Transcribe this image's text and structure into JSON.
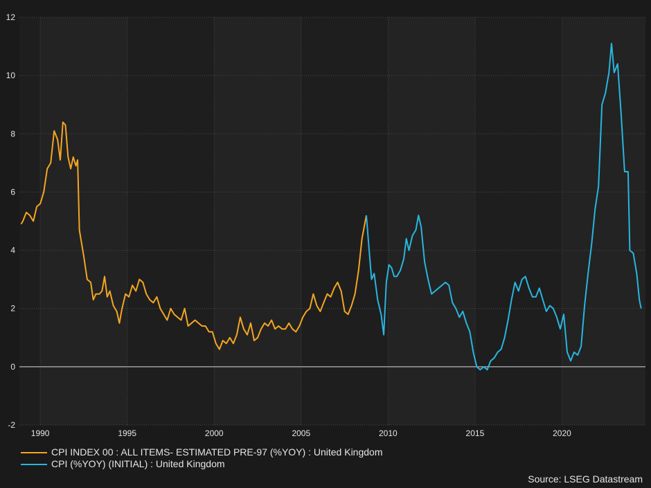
{
  "chart_data": {
    "type": "line",
    "title": "",
    "xlabel": "",
    "ylabel": "",
    "xlim": [
      1988.8,
      2024.8
    ],
    "ylim": [
      -2,
      12
    ],
    "x_ticks": [
      "1990",
      "1995",
      "2000",
      "2005",
      "2010",
      "2015",
      "2020"
    ],
    "y_ticks": [
      "-2",
      "0",
      "2",
      "4",
      "6",
      "8",
      "10",
      "12"
    ],
    "grid": true,
    "legend_position": "bottom-left",
    "zero_line": true,
    "series": [
      {
        "name": "CPI INDEX 00 : ALL ITEMS- ESTIMATED PRE-97 (%YOY) : United Kingdom",
        "color": "#f5a623",
        "points": [
          [
            1988.9,
            4.9
          ],
          [
            1989.0,
            5.0
          ],
          [
            1989.2,
            5.3
          ],
          [
            1989.4,
            5.2
          ],
          [
            1989.6,
            5.0
          ],
          [
            1989.8,
            5.5
          ],
          [
            1990.0,
            5.6
          ],
          [
            1990.2,
            6.0
          ],
          [
            1990.4,
            6.8
          ],
          [
            1990.6,
            7.0
          ],
          [
            1990.8,
            8.1
          ],
          [
            1991.0,
            7.8
          ],
          [
            1991.15,
            7.1
          ],
          [
            1991.3,
            8.4
          ],
          [
            1991.45,
            8.3
          ],
          [
            1991.6,
            7.2
          ],
          [
            1991.75,
            6.8
          ],
          [
            1991.9,
            7.2
          ],
          [
            1992.05,
            6.9
          ],
          [
            1992.15,
            7.1
          ],
          [
            1992.25,
            4.7
          ],
          [
            1992.5,
            3.8
          ],
          [
            1992.7,
            3.0
          ],
          [
            1992.9,
            2.9
          ],
          [
            1993.05,
            2.3
          ],
          [
            1993.2,
            2.5
          ],
          [
            1993.4,
            2.5
          ],
          [
            1993.55,
            2.6
          ],
          [
            1993.7,
            3.1
          ],
          [
            1993.85,
            2.4
          ],
          [
            1994.0,
            2.6
          ],
          [
            1994.2,
            2.1
          ],
          [
            1994.4,
            1.9
          ],
          [
            1994.55,
            1.5
          ],
          [
            1994.7,
            2.0
          ],
          [
            1994.9,
            2.5
          ],
          [
            1995.1,
            2.4
          ],
          [
            1995.3,
            2.8
          ],
          [
            1995.5,
            2.6
          ],
          [
            1995.7,
            3.0
          ],
          [
            1995.9,
            2.9
          ],
          [
            1996.1,
            2.5
          ],
          [
            1996.3,
            2.3
          ],
          [
            1996.5,
            2.2
          ],
          [
            1996.7,
            2.4
          ],
          [
            1996.9,
            2.0
          ],
          [
            1997.1,
            1.8
          ],
          [
            1997.3,
            1.6
          ],
          [
            1997.5,
            2.0
          ],
          [
            1997.7,
            1.8
          ],
          [
            1997.9,
            1.7
          ],
          [
            1998.1,
            1.6
          ],
          [
            1998.3,
            2.0
          ],
          [
            1998.5,
            1.4
          ],
          [
            1998.7,
            1.5
          ],
          [
            1998.9,
            1.6
          ],
          [
            1999.1,
            1.5
          ],
          [
            1999.3,
            1.4
          ],
          [
            1999.5,
            1.4
          ],
          [
            1999.7,
            1.2
          ],
          [
            1999.9,
            1.2
          ],
          [
            2000.1,
            0.8
          ],
          [
            2000.3,
            0.6
          ],
          [
            2000.5,
            0.9
          ],
          [
            2000.7,
            0.8
          ],
          [
            2000.9,
            1.0
          ],
          [
            2001.1,
            0.8
          ],
          [
            2001.3,
            1.1
          ],
          [
            2001.5,
            1.7
          ],
          [
            2001.7,
            1.3
          ],
          [
            2001.9,
            1.1
          ],
          [
            2002.1,
            1.5
          ],
          [
            2002.3,
            0.9
          ],
          [
            2002.5,
            1.0
          ],
          [
            2002.7,
            1.3
          ],
          [
            2002.9,
            1.5
          ],
          [
            2003.1,
            1.4
          ],
          [
            2003.3,
            1.6
          ],
          [
            2003.5,
            1.3
          ],
          [
            2003.7,
            1.4
          ],
          [
            2003.9,
            1.3
          ],
          [
            2004.1,
            1.3
          ],
          [
            2004.3,
            1.5
          ],
          [
            2004.5,
            1.3
          ],
          [
            2004.7,
            1.2
          ],
          [
            2004.9,
            1.4
          ],
          [
            2005.1,
            1.7
          ],
          [
            2005.3,
            1.9
          ],
          [
            2005.5,
            2.0
          ],
          [
            2005.7,
            2.5
          ],
          [
            2005.9,
            2.1
          ],
          [
            2006.1,
            1.9
          ],
          [
            2006.3,
            2.2
          ],
          [
            2006.5,
            2.5
          ],
          [
            2006.7,
            2.4
          ],
          [
            2006.9,
            2.7
          ],
          [
            2007.1,
            2.9
          ],
          [
            2007.3,
            2.6
          ],
          [
            2007.5,
            1.9
          ],
          [
            2007.7,
            1.8
          ],
          [
            2007.9,
            2.1
          ],
          [
            2008.1,
            2.5
          ],
          [
            2008.3,
            3.3
          ],
          [
            2008.5,
            4.4
          ],
          [
            2008.75,
            5.2
          ]
        ]
      },
      {
        "name": "CPI (%YOY) (INITIAL) : United Kingdom",
        "color": "#29b6e0",
        "points": [
          [
            2008.75,
            5.2
          ],
          [
            2008.9,
            4.1
          ],
          [
            2009.05,
            3.0
          ],
          [
            2009.2,
            3.2
          ],
          [
            2009.4,
            2.3
          ],
          [
            2009.6,
            1.8
          ],
          [
            2009.75,
            1.1
          ],
          [
            2009.9,
            2.9
          ],
          [
            2010.05,
            3.5
          ],
          [
            2010.2,
            3.4
          ],
          [
            2010.35,
            3.1
          ],
          [
            2010.5,
            3.1
          ],
          [
            2010.7,
            3.3
          ],
          [
            2010.9,
            3.7
          ],
          [
            2011.05,
            4.4
          ],
          [
            2011.2,
            4.0
          ],
          [
            2011.4,
            4.5
          ],
          [
            2011.6,
            4.7
          ],
          [
            2011.75,
            5.2
          ],
          [
            2011.9,
            4.8
          ],
          [
            2012.1,
            3.6
          ],
          [
            2012.3,
            3.0
          ],
          [
            2012.5,
            2.5
          ],
          [
            2012.7,
            2.6
          ],
          [
            2012.9,
            2.7
          ],
          [
            2013.1,
            2.8
          ],
          [
            2013.3,
            2.9
          ],
          [
            2013.5,
            2.8
          ],
          [
            2013.7,
            2.2
          ],
          [
            2013.9,
            2.0
          ],
          [
            2014.1,
            1.7
          ],
          [
            2014.3,
            1.9
          ],
          [
            2014.5,
            1.5
          ],
          [
            2014.7,
            1.2
          ],
          [
            2014.9,
            0.5
          ],
          [
            2015.1,
            0.0
          ],
          [
            2015.3,
            -0.1
          ],
          [
            2015.5,
            0.0
          ],
          [
            2015.7,
            -0.1
          ],
          [
            2015.9,
            0.2
          ],
          [
            2016.1,
            0.3
          ],
          [
            2016.3,
            0.5
          ],
          [
            2016.5,
            0.6
          ],
          [
            2016.7,
            1.0
          ],
          [
            2016.9,
            1.6
          ],
          [
            2017.1,
            2.3
          ],
          [
            2017.3,
            2.9
          ],
          [
            2017.5,
            2.6
          ],
          [
            2017.7,
            3.0
          ],
          [
            2017.9,
            3.1
          ],
          [
            2018.1,
            2.7
          ],
          [
            2018.3,
            2.4
          ],
          [
            2018.5,
            2.4
          ],
          [
            2018.7,
            2.7
          ],
          [
            2018.9,
            2.3
          ],
          [
            2019.1,
            1.9
          ],
          [
            2019.3,
            2.1
          ],
          [
            2019.5,
            2.0
          ],
          [
            2019.7,
            1.7
          ],
          [
            2019.9,
            1.3
          ],
          [
            2020.1,
            1.8
          ],
          [
            2020.3,
            0.5
          ],
          [
            2020.5,
            0.2
          ],
          [
            2020.7,
            0.5
          ],
          [
            2020.9,
            0.4
          ],
          [
            2021.1,
            0.7
          ],
          [
            2021.3,
            2.1
          ],
          [
            2021.5,
            3.2
          ],
          [
            2021.7,
            4.2
          ],
          [
            2021.9,
            5.4
          ],
          [
            2022.1,
            6.2
          ],
          [
            2022.3,
            9.0
          ],
          [
            2022.5,
            9.4
          ],
          [
            2022.7,
            10.1
          ],
          [
            2022.85,
            11.1
          ],
          [
            2023.0,
            10.1
          ],
          [
            2023.2,
            10.4
          ],
          [
            2023.4,
            8.7
          ],
          [
            2023.6,
            6.7
          ],
          [
            2023.8,
            6.7
          ],
          [
            2023.9,
            4.0
          ],
          [
            2024.1,
            3.9
          ],
          [
            2024.3,
            3.2
          ],
          [
            2024.45,
            2.3
          ],
          [
            2024.55,
            2.0
          ]
        ]
      }
    ]
  },
  "legend": {
    "items": [
      {
        "label": "CPI INDEX 00 : ALL ITEMS- ESTIMATED PRE-97 (%YOY) : United Kingdom",
        "color": "#f5a623"
      },
      {
        "label": "CPI (%YOY) (INITIAL) : United Kingdom",
        "color": "#29b6e0"
      }
    ]
  },
  "source": "Source: LSEG Datastream",
  "colors": {
    "background": "#1a1a1a",
    "plot_band_dark": "#1e1e1e",
    "plot_band_light": "#232323",
    "grid": "#4a4a4a",
    "zero_line": "#dddddd",
    "text": "#e6e6e6"
  }
}
